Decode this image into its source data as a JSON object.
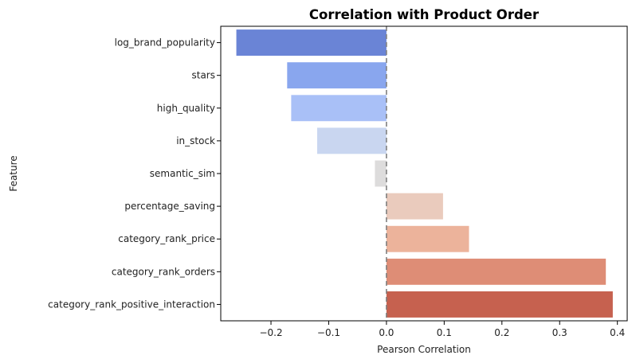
{
  "chart_data": {
    "type": "bar",
    "orientation": "horizontal",
    "title": "Correlation with Product Order",
    "xlabel": "Pearson Correlation",
    "ylabel": "Feature",
    "xlim": [
      -0.287,
      0.417
    ],
    "xticks": [
      -0.2,
      -0.1,
      0.0,
      0.1,
      0.2,
      0.3,
      0.4
    ],
    "xtick_labels": [
      "−0.2",
      "−0.1",
      "0.0",
      "0.1",
      "0.2",
      "0.3",
      "0.4"
    ],
    "grid": false,
    "reference_line": {
      "x": 0,
      "style": "dashed",
      "color": "#808080"
    },
    "categories": [
      "log_brand_popularity",
      "stars",
      "high_quality",
      "in_stock",
      "semantic_sim",
      "percentage_saving",
      "category_rank_price",
      "category_rank_orders",
      "category_rank_positive_interaction"
    ],
    "values": [
      -0.26,
      -0.172,
      -0.165,
      -0.12,
      -0.02,
      0.098,
      0.143,
      0.38,
      0.392
    ],
    "colors": [
      "#6a84d6",
      "#89a6ee",
      "#a9c0f7",
      "#c9d6f0",
      "#dddcdc",
      "#eacbbd",
      "#ecb39b",
      "#de8d76",
      "#c6614f"
    ]
  }
}
